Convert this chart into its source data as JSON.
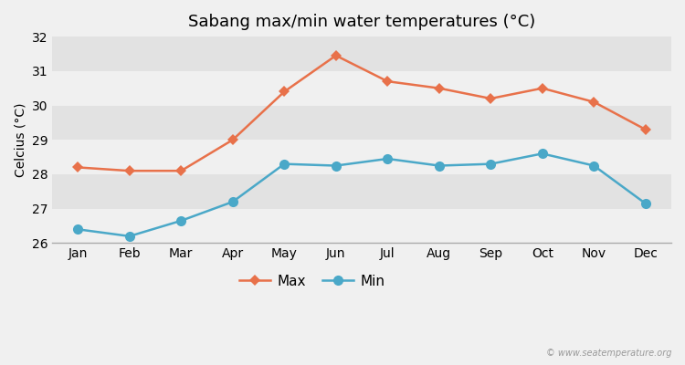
{
  "months": [
    "Jan",
    "Feb",
    "Mar",
    "Apr",
    "May",
    "Jun",
    "Jul",
    "Aug",
    "Sep",
    "Oct",
    "Nov",
    "Dec"
  ],
  "max_temps": [
    28.2,
    28.1,
    28.1,
    29.0,
    30.4,
    31.45,
    30.7,
    30.5,
    30.2,
    30.5,
    30.1,
    29.3
  ],
  "min_temps": [
    26.4,
    26.2,
    26.65,
    27.2,
    28.3,
    28.25,
    28.45,
    28.25,
    28.3,
    28.6,
    28.25,
    27.15
  ],
  "max_color": "#e8714a",
  "min_color": "#4aa8c8",
  "band_colors": [
    "#f0f0f0",
    "#e2e2e2"
  ],
  "title": "Sabang max/min water temperatures (°C)",
  "ylabel": "Celcius (°C)",
  "ylim": [
    26,
    32
  ],
  "yticks": [
    26,
    27,
    28,
    29,
    30,
    31,
    32
  ],
  "legend_labels": [
    "Max",
    "Min"
  ],
  "watermark": "© www.seatemperature.org",
  "title_fontsize": 13,
  "label_fontsize": 10,
  "tick_fontsize": 10,
  "max_marker": "D",
  "min_marker": "o",
  "max_markersize": 6,
  "min_markersize": 8,
  "linewidth": 1.8
}
